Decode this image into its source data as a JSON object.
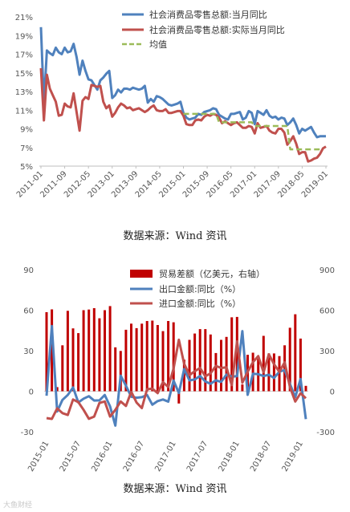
{
  "source_label_1": "数据来源：Wind 资讯",
  "source_label_2": "数据来源：Wind 资讯",
  "watermark": "大鱼财经",
  "chart_data": [
    {
      "type": "line",
      "y_tick_labels": [
        "5%",
        "7%",
        "9%",
        "11%",
        "13%",
        "15%",
        "17%",
        "19%",
        "21%"
      ],
      "ylim": [
        5,
        21
      ],
      "x_tick_labels": [
        "2011-01",
        "2011-09",
        "2012-05",
        "2013-01",
        "2013-09",
        "2014-05",
        "2015-01",
        "2015-09",
        "2016-05",
        "2017-01",
        "2017-09",
        "2018-05",
        "2019-01"
      ],
      "grid": false,
      "legend_position": "top-center",
      "series": [
        {
          "name": "社会消费品零售总额:当月同比",
          "color": "#4f81bd",
          "values": [
            19.9,
            11.6,
            17.4,
            17.1,
            16.9,
            17.7,
            17.2,
            17.0,
            17.7,
            17.2,
            17.3,
            18.1,
            16.7,
            14.8,
            16.3,
            15.2,
            14.3,
            14.2,
            13.7,
            13.2,
            14.2,
            14.5,
            14.9,
            15.2,
            12.3,
            12.6,
            13.2,
            12.9,
            13.3,
            13.3,
            13.2,
            13.4,
            13.3,
            13.2,
            13.3,
            13.6,
            11.8,
            12.2,
            11.9,
            12.5,
            12.4,
            12.2,
            11.9,
            11.6,
            11.5,
            11.6,
            11.7,
            11.9,
            10.7,
            10.2,
            10.0,
            10.1,
            10.2,
            10.6,
            10.5,
            10.8,
            10.9,
            11.0,
            11.2,
            11.1,
            10.5,
            10.3,
            10.1,
            10.0,
            10.6,
            10.6,
            10.7,
            10.8,
            10.0,
            10.2,
            10.9,
            10.7,
            9.5,
            10.9,
            10.7,
            10.5,
            11.0,
            10.4,
            10.2,
            10.3,
            10.0,
            10.2,
            10.1,
            9.4,
            9.7,
            10.1,
            9.4,
            8.5,
            9.0,
            8.8,
            9.0,
            9.2,
            8.6,
            8.1,
            8.2,
            8.2,
            8.2
          ]
        },
        {
          "name": "社会消费品零售总额:实际当月同比",
          "color": "#c0504d",
          "values": [
            15.5,
            9.9,
            14.8,
            13.3,
            12.6,
            11.9,
            10.4,
            10.5,
            11.7,
            11.4,
            11.3,
            12.8,
            10.8,
            8.8,
            12.0,
            12.4,
            12.2,
            13.7,
            13.6,
            13.5,
            13.6,
            11.9,
            11.2,
            11.5,
            10.3,
            10.7,
            11.3,
            11.7,
            11.5,
            11.2,
            11.3,
            11.0,
            11.1,
            11.2,
            11.0,
            10.8,
            11.0,
            11.3,
            11.5,
            11.0,
            10.9,
            10.9,
            11.1,
            10.7,
            10.7,
            10.8,
            10.9,
            10.9,
            10.4,
            9.5,
            9.4,
            9.4,
            9.9,
            10.0,
            9.9,
            10.3,
            10.5,
            10.4,
            10.6,
            10.5,
            10.2,
            9.6,
            9.8,
            9.6,
            9.4,
            9.6,
            9.7,
            9.4,
            9.1,
            9.1,
            9.3,
            9.2,
            8.5,
            9.6,
            9.1,
            9.2,
            9.3,
            8.8,
            8.6,
            8.5,
            9.0,
            9.0,
            8.6,
            7.3,
            7.7,
            8.2,
            7.4,
            6.3,
            6.5,
            6.5,
            5.5,
            5.6,
            5.8,
            5.9,
            6.3,
            6.9,
            7.1
          ]
        },
        {
          "name": "均值",
          "color": "#9bbb59",
          "dashed": true,
          "values": [
            null,
            null,
            null,
            null,
            null,
            null,
            null,
            null,
            null,
            null,
            null,
            null,
            null,
            null,
            null,
            null,
            null,
            null,
            null,
            null,
            null,
            null,
            null,
            null,
            null,
            null,
            null,
            null,
            null,
            null,
            null,
            null,
            null,
            null,
            null,
            null,
            null,
            null,
            null,
            null,
            null,
            null,
            null,
            null,
            null,
            null,
            null,
            null,
            10.6,
            10.6,
            10.6,
            10.6,
            10.6,
            10.6,
            10.6,
            10.6,
            10.6,
            10.6,
            10.6,
            10.6,
            9.7,
            9.7,
            9.7,
            9.7,
            9.7,
            9.7,
            9.7,
            9.7,
            9.7,
            9.7,
            9.7,
            9.7,
            9.3,
            9.3,
            9.3,
            9.3,
            9.3,
            9.3,
            9.3,
            9.3,
            9.3,
            9.3,
            9.3,
            9.3,
            6.8,
            6.8,
            6.8,
            6.8,
            6.8,
            6.8,
            6.8,
            6.8,
            6.8,
            6.8,
            6.8,
            6.8,
            null
          ]
        }
      ]
    },
    {
      "type": "bar+line",
      "left_y_tick_labels": [
        "-30",
        "0",
        "30",
        "60",
        "90"
      ],
      "left_ylim": [
        -30,
        90
      ],
      "right_y_tick_labels": [
        "-300",
        "0",
        "300",
        "600",
        "900"
      ],
      "right_ylim": [
        -300,
        900
      ],
      "x_tick_labels": [
        "2015-01",
        "2015-07",
        "2016-01",
        "2016-07",
        "2017-01",
        "2017-07",
        "2018-01",
        "2018-07",
        "2019-01"
      ],
      "grid": false,
      "legend_position": "top-center",
      "bars": {
        "name": "贸易差额（亿美元，右轴）",
        "color": "#c00000",
        "values": [
          585,
          606,
          30,
          340,
          595,
          465,
          430,
          600,
          605,
          615,
          540,
          600,
          630,
          325,
          298,
          455,
          500,
          467,
          500,
          520,
          523,
          490,
          445,
          520,
          510,
          -91,
          234,
          380,
          427,
          460,
          460,
          420,
          283,
          380,
          402,
          547,
          550,
          50,
          270,
          285,
          240,
          410,
          280,
          280,
          260,
          340,
          470,
          570,
          390,
          40
        ]
      },
      "series": [
        {
          "name": "出口金额:同比（%）",
          "color": "#4f81bd",
          "axis": "left",
          "values": [
            -3.3,
            48.3,
            -15.0,
            -6.4,
            -2.8,
            2.8,
            -8.3,
            -5.5,
            -3.7,
            -6.9,
            -6.8,
            -2.8,
            -11.2,
            -25.4,
            11.5,
            4.1,
            -4.1,
            -4.8,
            -4.4,
            -2.8,
            -10.0,
            -7.3,
            -6.1,
            -7.7,
            7.9,
            -1.3,
            16.4,
            8.0,
            8.7,
            11.3,
            7.2,
            5.5,
            8.1,
            6.9,
            12.3,
            10.9,
            11.1,
            44.5,
            -2.7,
            12.9,
            12.6,
            11.2,
            12.2,
            9.8,
            14.5,
            15.6,
            5.4,
            -4.4,
            9.1,
            -20.7
          ]
        },
        {
          "name": "进口金额:同比（%）",
          "color": "#c0504d",
          "axis": "left",
          "values": [
            -19.9,
            -20.5,
            -12.7,
            -16.2,
            -17.6,
            -6.1,
            -8.1,
            -13.8,
            -20.4,
            -18.8,
            -8.7,
            -7.6,
            -18.8,
            -13.8,
            -7.6,
            -10.9,
            -0.4,
            -8.4,
            -12.5,
            1.5,
            1.9,
            -1.4,
            6.7,
            3.1,
            16.7,
            38.1,
            20.3,
            11.9,
            14.8,
            17.2,
            11.0,
            13.3,
            18.7,
            17.2,
            17.7,
            4.5,
            36.9,
            6.3,
            14.4,
            21.5,
            26.0,
            14.1,
            27.3,
            20.0,
            14.3,
            21.4,
            3.0,
            -7.6,
            -1.5,
            -5.2
          ]
        }
      ]
    }
  ]
}
